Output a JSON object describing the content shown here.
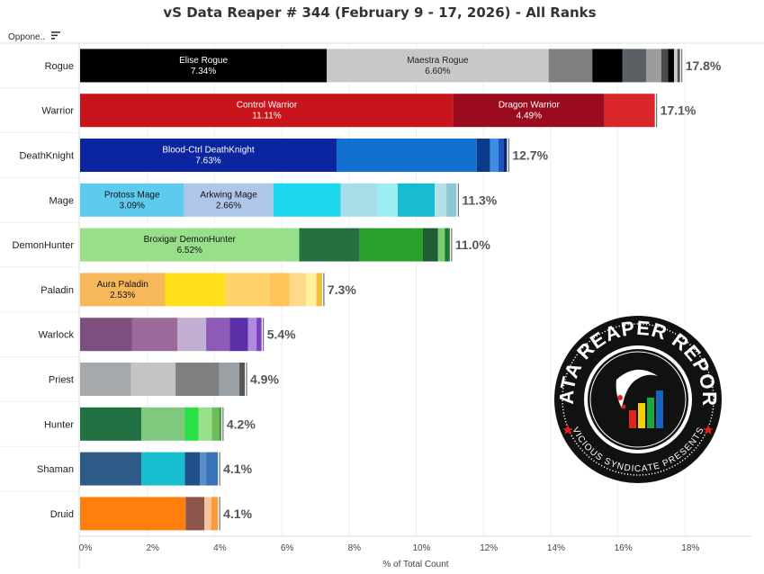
{
  "chart_data": {
    "type": "bar",
    "orientation": "horizontal",
    "stacked": true,
    "title": "vS Data Reaper # 344 (February 9 - 17, 2026) - All Ranks",
    "row_header": "Oppone..",
    "xlabel": "% of Total Count",
    "xlim": [
      0,
      20
    ],
    "x_ticks": [
      "0%",
      "2%",
      "4%",
      "6%",
      "8%",
      "10%",
      "12%",
      "14%",
      "16%",
      "18%"
    ],
    "grid": true,
    "legend": "none",
    "rows": [
      {
        "category": "Rogue",
        "total_label": "17.8%",
        "segments": [
          {
            "value": 7.34,
            "color": "#000000",
            "name": "Elise Rogue",
            "label": "7.34%",
            "text_color": "#ffffff"
          },
          {
            "value": 6.6,
            "color": "#c8c8c8",
            "name": "Maestra Rogue",
            "label": "6.60%",
            "text_color": "#222222"
          },
          {
            "value": 1.3,
            "color": "#7f7f7f"
          },
          {
            "value": 0.9,
            "color": "#000000"
          },
          {
            "value": 0.7,
            "color": "#5a6066"
          },
          {
            "value": 0.45,
            "color": "#9c9c9c"
          },
          {
            "value": 0.2,
            "color": "#4a4a4a"
          },
          {
            "value": 0.18,
            "color": "#000000"
          },
          {
            "value": 0.1,
            "color": "#cccccc"
          },
          {
            "value": 0.08,
            "color": "#555555"
          }
        ]
      },
      {
        "category": "Warrior",
        "total_label": "17.1%",
        "segments": [
          {
            "value": 11.11,
            "color": "#c8151b",
            "name": "Control Warrior",
            "label": "11.11%",
            "text_color": "#ffffff"
          },
          {
            "value": 4.49,
            "color": "#9a0b1f",
            "name": "Dragon Warrior",
            "label": "4.49%",
            "text_color": "#ffffff"
          },
          {
            "value": 1.5,
            "color": "#d9262b"
          }
        ]
      },
      {
        "category": "DeathKnight",
        "total_label": "12.7%",
        "segments": [
          {
            "value": 7.63,
            "color": "#0b24a0",
            "name": "Blood-Ctrl DeathKnight",
            "label": "7.63%",
            "text_color": "#ffffff"
          },
          {
            "value": 4.17,
            "color": "#1170d0"
          },
          {
            "value": 0.4,
            "color": "#0b3a8a"
          },
          {
            "value": 0.25,
            "color": "#3e8ee8"
          },
          {
            "value": 0.15,
            "color": "#1e56c0"
          },
          {
            "value": 0.1,
            "color": "#0a2a70"
          }
        ]
      },
      {
        "category": "Mage",
        "total_label": "11.3%",
        "segments": [
          {
            "value": 3.09,
            "color": "#5ccbee",
            "name": "Protoss Mage",
            "label": "3.09%",
            "text_color": "#111111"
          },
          {
            "value": 2.66,
            "color": "#aec6e8",
            "name": "Arkwing Mage",
            "label": "2.66%",
            "text_color": "#111111"
          },
          {
            "value": 2.0,
            "color": "#1dd8ec"
          },
          {
            "value": 1.1,
            "color": "#a6dee8"
          },
          {
            "value": 0.6,
            "color": "#9beef2"
          },
          {
            "value": 1.1,
            "color": "#17bcd0"
          },
          {
            "value": 0.35,
            "color": "#b4e0ea"
          },
          {
            "value": 0.3,
            "color": "#8ec8d6"
          }
        ]
      },
      {
        "category": "DemonHunter",
        "total_label": "11.0%",
        "segments": [
          {
            "value": 6.52,
            "color": "#98df8a",
            "name": "Broxigar DemonHunter",
            "label": "6.52%",
            "text_color": "#111111"
          },
          {
            "value": 1.8,
            "color": "#257040"
          },
          {
            "value": 1.88,
            "color": "#2ca02c"
          },
          {
            "value": 0.45,
            "color": "#1f5c34"
          },
          {
            "value": 0.2,
            "color": "#7ccc6c"
          },
          {
            "value": 0.15,
            "color": "#1a7a30"
          }
        ]
      },
      {
        "category": "Paladin",
        "total_label": "7.3%",
        "segments": [
          {
            "value": 2.53,
            "color": "#f7b85a",
            "name": "Aura Paladin",
            "label": "2.53%",
            "text_color": "#111111"
          },
          {
            "value": 1.8,
            "color": "#ffe01a"
          },
          {
            "value": 1.3,
            "color": "#ffd36a"
          },
          {
            "value": 0.6,
            "color": "#ffc35a"
          },
          {
            "value": 0.5,
            "color": "#ffd98a"
          },
          {
            "value": 0.3,
            "color": "#fff0a0"
          },
          {
            "value": 0.17,
            "color": "#f0c040"
          }
        ]
      },
      {
        "category": "Warlock",
        "total_label": "5.4%",
        "segments": [
          {
            "value": 1.55,
            "color": "#7e4f7e"
          },
          {
            "value": 1.35,
            "color": "#9b6a9b"
          },
          {
            "value": 0.85,
            "color": "#c4afd4"
          },
          {
            "value": 0.7,
            "color": "#8e5ab8"
          },
          {
            "value": 0.55,
            "color": "#5c2ea8"
          },
          {
            "value": 0.25,
            "color": "#b08ae0"
          },
          {
            "value": 0.15,
            "color": "#7b3fc0"
          }
        ]
      },
      {
        "category": "Priest",
        "total_label": "4.9%",
        "segments": [
          {
            "value": 1.52,
            "color": "#a6a9ab"
          },
          {
            "value": 1.32,
            "color": "#c4c4c4"
          },
          {
            "value": 1.3,
            "color": "#7f7f7f"
          },
          {
            "value": 0.6,
            "color": "#9aa2a8"
          },
          {
            "value": 0.16,
            "color": "#555555"
          }
        ]
      },
      {
        "category": "Hunter",
        "total_label": "4.2%",
        "segments": [
          {
            "value": 1.82,
            "color": "#217041"
          },
          {
            "value": 1.3,
            "color": "#7fc97f"
          },
          {
            "value": 0.4,
            "color": "#29e046"
          },
          {
            "value": 0.4,
            "color": "#98df8a"
          },
          {
            "value": 0.22,
            "color": "#6dbb5a"
          },
          {
            "value": 0.06,
            "color": "#3a9a3a"
          }
        ]
      },
      {
        "category": "Shaman",
        "total_label": "4.1%",
        "segments": [
          {
            "value": 1.82,
            "color": "#2e5a87"
          },
          {
            "value": 1.3,
            "color": "#17becf"
          },
          {
            "value": 0.45,
            "color": "#1f4e88"
          },
          {
            "value": 0.18,
            "color": "#5a8fc8"
          },
          {
            "value": 0.35,
            "color": "#3a74b8"
          }
        ]
      },
      {
        "category": "Druid",
        "total_label": "4.1%",
        "segments": [
          {
            "value": 3.14,
            "color": "#ff7f0e"
          },
          {
            "value": 0.56,
            "color": "#8c564b"
          },
          {
            "value": 0.2,
            "color": "#f4c59c"
          },
          {
            "value": 0.2,
            "color": "#ff9a3a"
          }
        ]
      }
    ]
  },
  "logo": {
    "top_text": "DATA REAPER REPORT",
    "bottom_text": "VICIOUS SYNDICATE PRESENTS",
    "ring_color": "#111111",
    "star_color": "#e2231a",
    "bar_colors": [
      "#e2231a",
      "#f5d000",
      "#19a83c",
      "#1565c0"
    ]
  }
}
